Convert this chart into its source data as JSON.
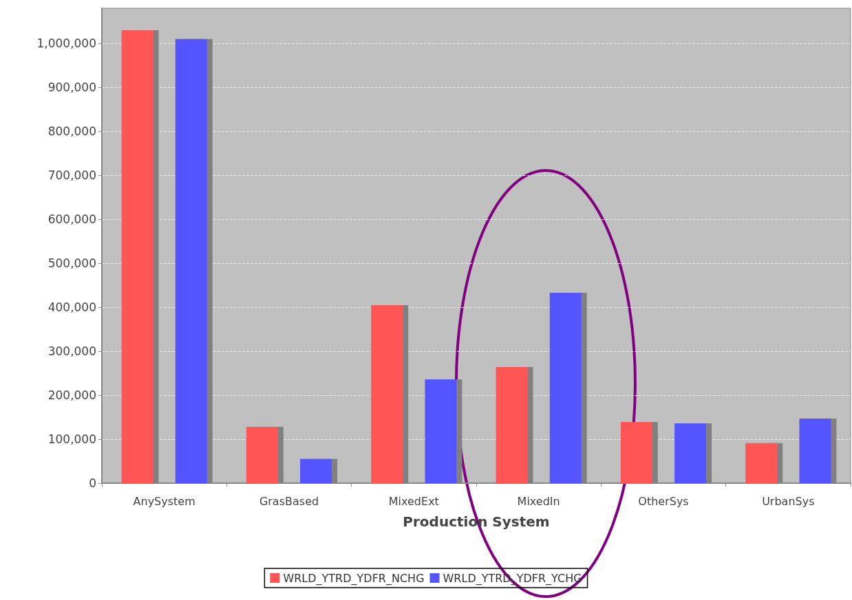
{
  "chart_data": {
    "type": "bar",
    "xlabel": "Production System",
    "categories": [
      "AnySystem",
      "GrasBased",
      "MixedExt",
      "MixedIn",
      "OtherSys",
      "UrbanSys"
    ],
    "series": [
      {
        "name": "WRLD_YTRD_YDFR_NCHG",
        "color": "#ff5555",
        "values": [
          1030000,
          128000,
          405000,
          264000,
          139000,
          91000
        ]
      },
      {
        "name": "WRLD_YTRD_YDFR_YCHG",
        "color": "#5555ff",
        "values": [
          1010000,
          55000,
          236000,
          433000,
          136000,
          147000
        ]
      }
    ],
    "ylim": [
      0,
      1080000
    ],
    "yticks": [
      0,
      {
        "value": 100000,
        "label": "100,000"
      },
      {
        "value": 200000,
        "label": "200,000"
      },
      {
        "value": 300000,
        "label": "300,000"
      },
      {
        "value": 400000,
        "label": "400,000"
      },
      {
        "value": 500000,
        "label": "500,000"
      },
      {
        "value": 600000,
        "label": "600,000"
      },
      {
        "value": 700000,
        "label": "700,000"
      },
      {
        "value": 800000,
        "label": "800,000"
      },
      {
        "value": 900000,
        "label": "900,000"
      },
      {
        "value": 1000000,
        "label": "1,000,000"
      }
    ],
    "grid": "y",
    "legend": "bottom"
  }
}
